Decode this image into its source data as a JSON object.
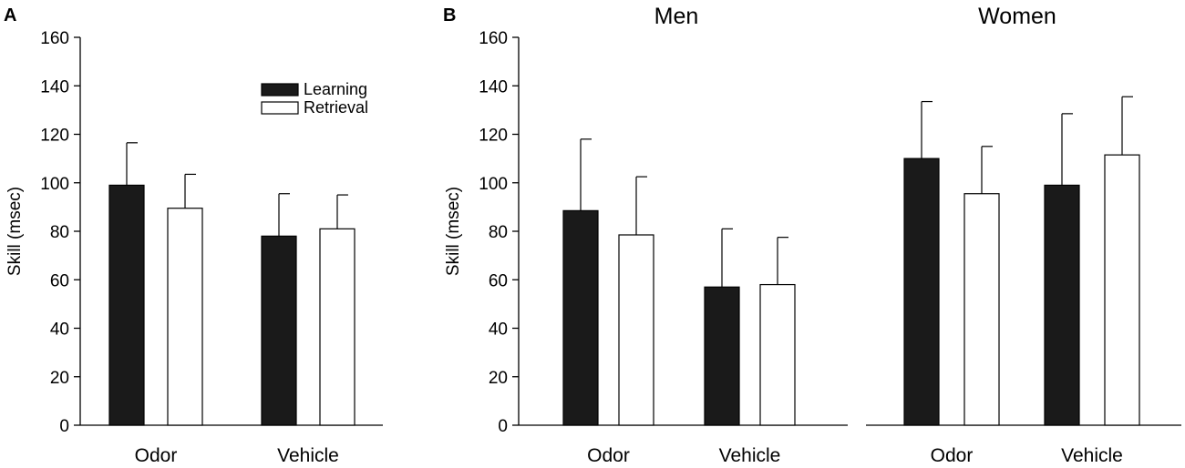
{
  "chart_data": [
    {
      "panel_letter": "A",
      "type": "bar",
      "title": "",
      "ylabel": "Skill (msec)",
      "xlabel": "",
      "ylim": [
        0,
        160
      ],
      "yticks": [
        "0",
        "20",
        "40",
        "60",
        "80",
        "100",
        "120",
        "140",
        "160"
      ],
      "categories": [
        "Odor",
        "Vehicle"
      ],
      "series": [
        {
          "name": "Learning",
          "color": "#1a1a1a",
          "values": [
            99,
            78
          ],
          "errors": [
            17.5,
            17.5
          ]
        },
        {
          "name": "Retrieval",
          "color": "#ffffff",
          "values": [
            89.5,
            81
          ],
          "errors": [
            14,
            14
          ]
        }
      ],
      "legend": [
        "Learning",
        "Retrieval"
      ],
      "legend_position": "top-right"
    },
    {
      "panel_letter": "B",
      "type": "bar",
      "title": "Men",
      "ylabel": "Skill (msec)",
      "xlabel": "",
      "ylim": [
        0,
        160
      ],
      "yticks": [
        "0",
        "20",
        "40",
        "60",
        "80",
        "100",
        "120",
        "140",
        "160"
      ],
      "categories": [
        "Odor",
        "Vehicle"
      ],
      "series": [
        {
          "name": "Learning",
          "color": "#1a1a1a",
          "values": [
            88.5,
            57
          ],
          "errors": [
            29.5,
            24
          ]
        },
        {
          "name": "Retrieval",
          "color": "#ffffff",
          "values": [
            78.5,
            58
          ],
          "errors": [
            24,
            19.5
          ]
        }
      ]
    },
    {
      "panel_letter": "",
      "type": "bar",
      "title": "Women",
      "ylabel": "",
      "xlabel": "",
      "ylim": [
        0,
        160
      ],
      "categories": [
        "Odor",
        "Vehicle"
      ],
      "series": [
        {
          "name": "Learning",
          "color": "#1a1a1a",
          "values": [
            110,
            99
          ],
          "errors": [
            23.5,
            29.5
          ]
        },
        {
          "name": "Retrieval",
          "color": "#ffffff",
          "values": [
            95.5,
            111.5
          ],
          "errors": [
            19.5,
            24
          ]
        }
      ]
    }
  ]
}
